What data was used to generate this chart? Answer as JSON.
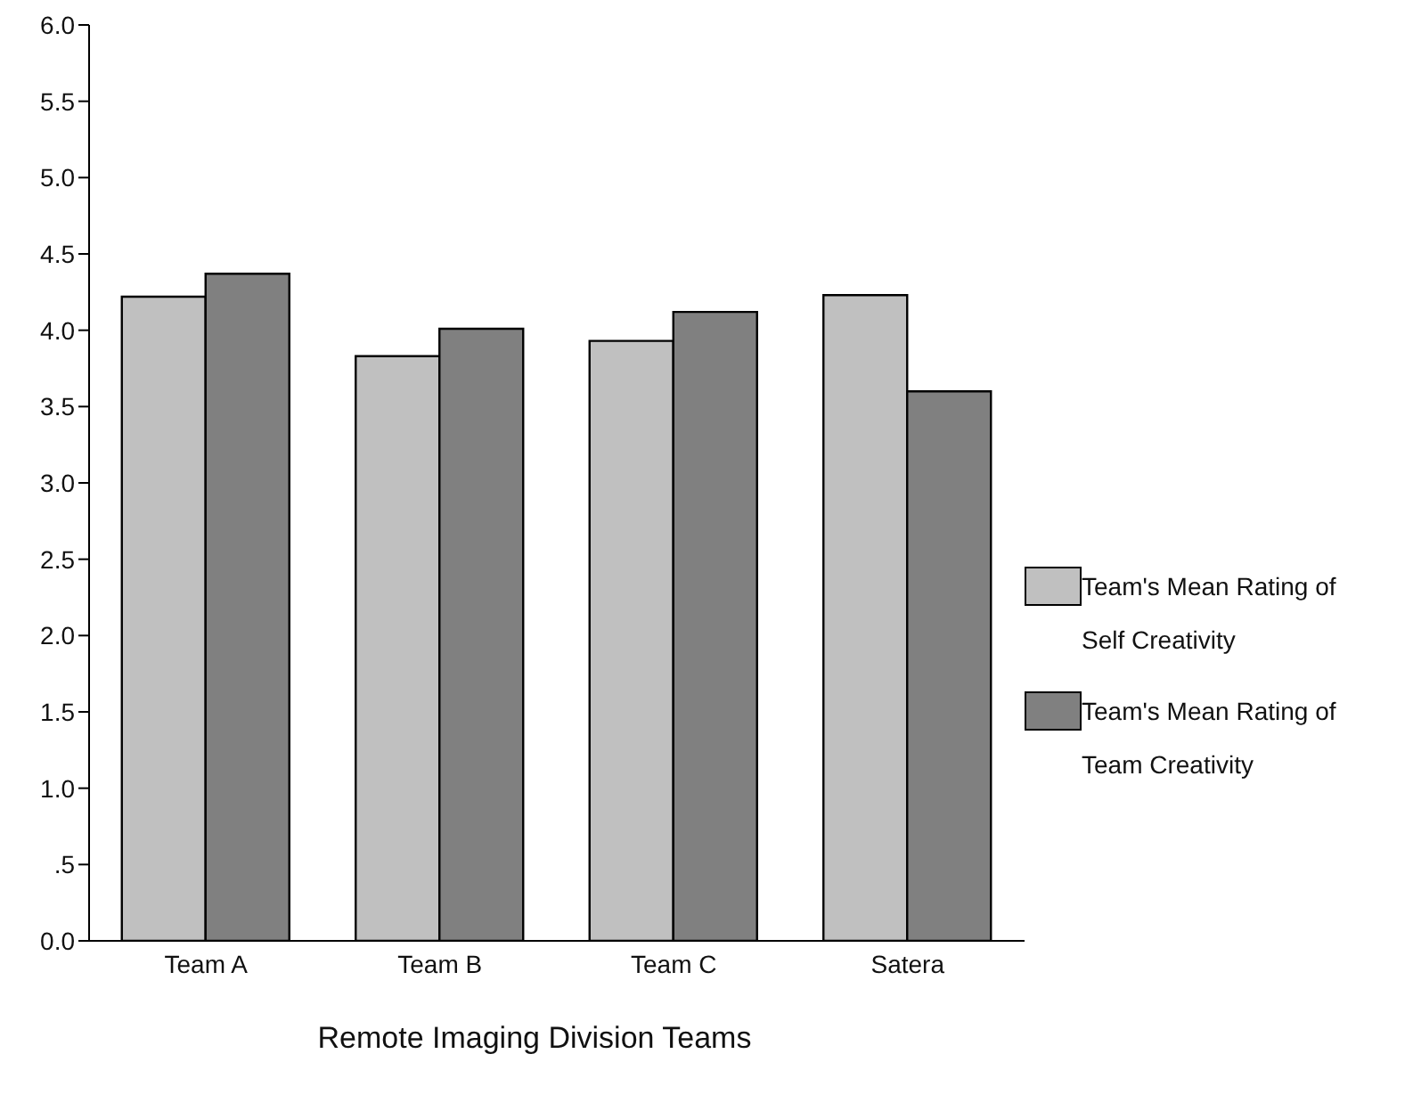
{
  "chart_data": {
    "type": "bar",
    "xlabel": "Remote Imaging Division Teams",
    "categories": [
      "Team A",
      "Team B",
      "Team C",
      "Satera"
    ],
    "series": [
      {
        "name": "Team's Mean Rating of Self Creativity",
        "color": "#c0c0c0",
        "values": [
          4.22,
          3.83,
          3.93,
          4.23
        ]
      },
      {
        "name": "Team's Mean Rating of Team Creativity",
        "color": "#808080",
        "values": [
          4.37,
          4.01,
          4.12,
          3.6
        ]
      }
    ],
    "ylim": [
      0,
      6
    ],
    "yticks": [
      {
        "value": 0,
        "label": "0.0"
      },
      {
        "value": 0.5,
        "label": ".5"
      },
      {
        "value": 1,
        "label": "1.0"
      },
      {
        "value": 1.5,
        "label": "1.5"
      },
      {
        "value": 2,
        "label": "2.0"
      },
      {
        "value": 2.5,
        "label": "2.5"
      },
      {
        "value": 3,
        "label": "3.0"
      },
      {
        "value": 3.5,
        "label": "3.5"
      },
      {
        "value": 4,
        "label": "4.0"
      },
      {
        "value": 4.5,
        "label": "4.5"
      },
      {
        "value": 5,
        "label": "5.0"
      },
      {
        "value": 5.5,
        "label": "5.5"
      },
      {
        "value": 6,
        "label": "6.0"
      }
    ],
    "grid": false,
    "legend": "right"
  }
}
